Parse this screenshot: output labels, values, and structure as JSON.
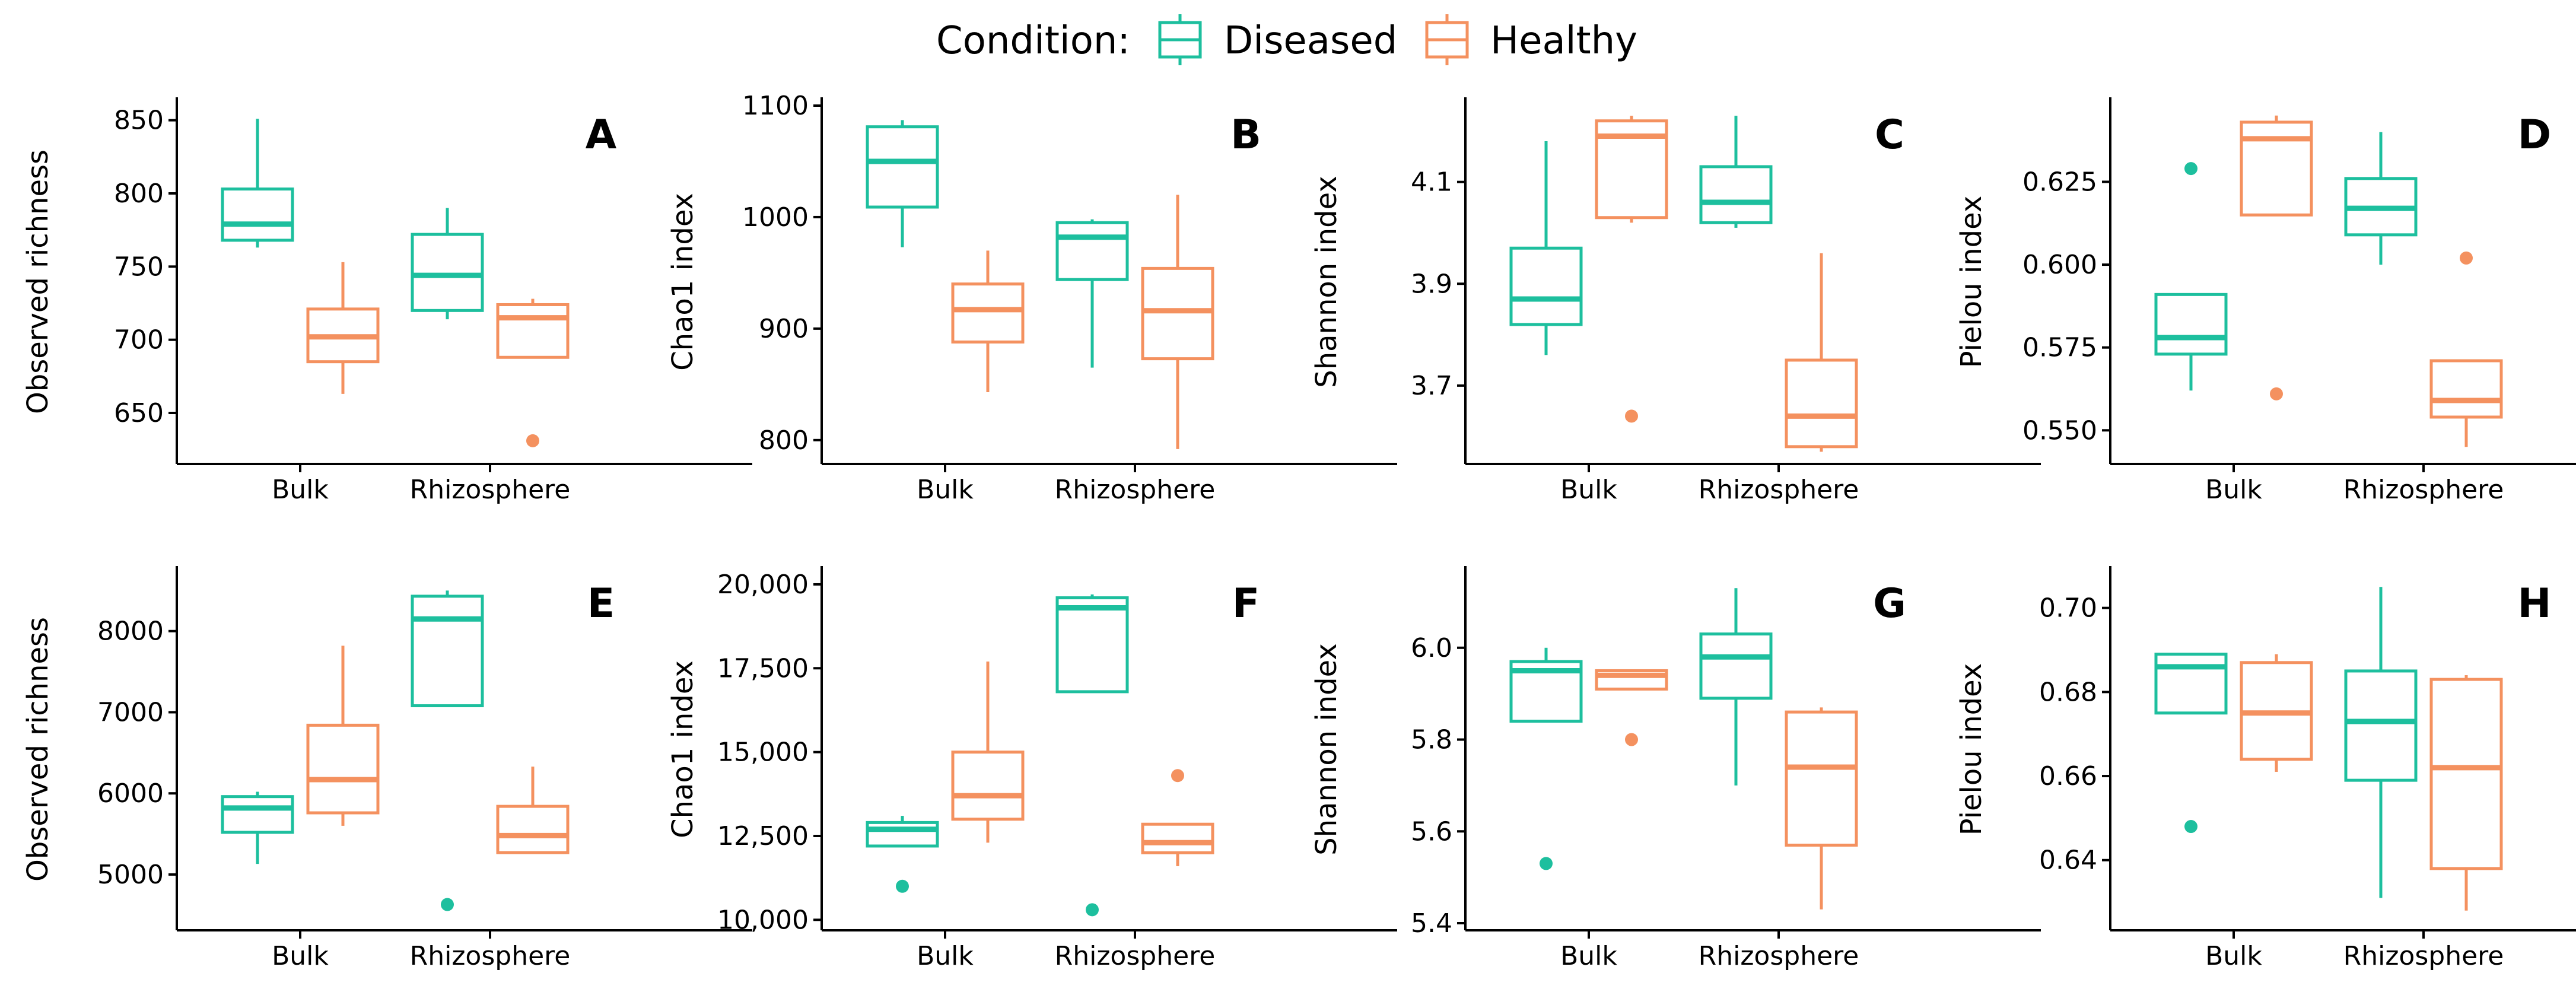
{
  "legend": {
    "title": "Condition:",
    "items": [
      {
        "name": "Diseased",
        "color": "#1dbf9e"
      },
      {
        "name": "Healthy",
        "color": "#f4915f"
      }
    ]
  },
  "categories": [
    "Bulk",
    "Rhizosphere"
  ],
  "chart_data": [
    {
      "type": "box",
      "panel": "A",
      "ylabel": "Observed richness",
      "ylim": [
        620,
        860
      ],
      "yticks": [
        650,
        700,
        750,
        800,
        850
      ],
      "ytick_labels": [
        "650",
        "700",
        "750",
        "800",
        "850"
      ],
      "series": [
        {
          "name": "Diseased",
          "boxes": [
            {
              "category": "Bulk",
              "min": 763,
              "q1": 768,
              "median": 779,
              "q3": 803,
              "max": 851,
              "outliers": []
            },
            {
              "category": "Rhizosphere",
              "min": 714,
              "q1": 720,
              "median": 744,
              "q3": 772,
              "max": 790,
              "outliers": []
            }
          ]
        },
        {
          "name": "Healthy",
          "boxes": [
            {
              "category": "Bulk",
              "min": 663,
              "q1": 685,
              "median": 702,
              "q3": 721,
              "max": 753,
              "outliers": []
            },
            {
              "category": "Rhizosphere",
              "min": 688,
              "q1": 688,
              "median": 715,
              "q3": 724,
              "max": 728,
              "outliers": [
                631
              ]
            }
          ]
        }
      ]
    },
    {
      "type": "box",
      "panel": "B",
      "ylabel": "Chao1 index",
      "ylim": [
        785,
        1100
      ],
      "yticks": [
        800,
        900,
        1000,
        1100
      ],
      "ytick_labels": [
        "800",
        "900",
        "1000",
        "1100"
      ],
      "series": [
        {
          "name": "Diseased",
          "boxes": [
            {
              "category": "Bulk",
              "min": 973,
              "q1": 1009,
              "median": 1050,
              "q3": 1081,
              "max": 1087,
              "outliers": []
            },
            {
              "category": "Rhizosphere",
              "min": 865,
              "q1": 944,
              "median": 982,
              "q3": 995,
              "max": 998,
              "outliers": []
            }
          ]
        },
        {
          "name": "Healthy",
          "boxes": [
            {
              "category": "Bulk",
              "min": 843,
              "q1": 888,
              "median": 917,
              "q3": 940,
              "max": 970,
              "outliers": []
            },
            {
              "category": "Rhizosphere",
              "min": 792,
              "q1": 873,
              "median": 916,
              "q3": 954,
              "max": 1020,
              "outliers": []
            }
          ]
        }
      ]
    },
    {
      "type": "box",
      "panel": "C",
      "ylabel": "Shannon index",
      "ylim": [
        3.56,
        4.25
      ],
      "yticks": [
        3.7,
        3.9,
        4.1
      ],
      "ytick_labels": [
        "3.7",
        "3.9",
        "4.1"
      ],
      "series": [
        {
          "name": "Diseased",
          "boxes": [
            {
              "category": "Bulk",
              "min": 3.76,
              "q1": 3.82,
              "median": 3.87,
              "q3": 3.97,
              "max": 4.18,
              "outliers": []
            },
            {
              "category": "Rhizosphere",
              "min": 4.01,
              "q1": 4.02,
              "median": 4.06,
              "q3": 4.13,
              "max": 4.23,
              "outliers": []
            }
          ]
        },
        {
          "name": "Healthy",
          "boxes": [
            {
              "category": "Bulk",
              "min": 4.02,
              "q1": 4.03,
              "median": 4.19,
              "q3": 4.22,
              "max": 4.23,
              "outliers": [
                3.64
              ]
            },
            {
              "category": "Rhizosphere",
              "min": 3.57,
              "q1": 3.58,
              "median": 3.64,
              "q3": 3.75,
              "max": 3.96,
              "outliers": []
            }
          ]
        }
      ]
    },
    {
      "type": "box",
      "panel": "D",
      "ylabel": "Pielou index",
      "ylim": [
        0.542,
        0.648
      ],
      "yticks": [
        0.55,
        0.575,
        0.6,
        0.625
      ],
      "ytick_labels": [
        "0.550",
        "0.575",
        "0.600",
        "0.625"
      ],
      "series": [
        {
          "name": "Diseased",
          "boxes": [
            {
              "category": "Bulk",
              "min": 0.562,
              "q1": 0.573,
              "median": 0.578,
              "q3": 0.591,
              "max": 0.591,
              "outliers": [
                0.629
              ]
            },
            {
              "category": "Rhizosphere",
              "min": 0.6,
              "q1": 0.609,
              "median": 0.617,
              "q3": 0.626,
              "max": 0.64,
              "outliers": []
            }
          ]
        },
        {
          "name": "Healthy",
          "boxes": [
            {
              "category": "Bulk",
              "min": 0.615,
              "q1": 0.615,
              "median": 0.638,
              "q3": 0.643,
              "max": 0.645,
              "outliers": [
                0.561
              ]
            },
            {
              "category": "Rhizosphere",
              "min": 0.545,
              "q1": 0.554,
              "median": 0.559,
              "q3": 0.571,
              "max": 0.571,
              "outliers": [
                0.602
              ]
            }
          ]
        }
      ]
    },
    {
      "type": "box",
      "panel": "E",
      "ylabel": "Observed richness",
      "ylim": [
        4400,
        8700
      ],
      "yticks": [
        5000,
        6000,
        7000,
        8000
      ],
      "ytick_labels": [
        "5000",
        "6000",
        "7000",
        "8000"
      ],
      "series": [
        {
          "name": "Diseased",
          "boxes": [
            {
              "category": "Bulk",
              "min": 5130,
              "q1": 5520,
              "median": 5820,
              "q3": 5960,
              "max": 6020,
              "outliers": []
            },
            {
              "category": "Rhizosphere",
              "min": 7080,
              "q1": 7080,
              "median": 8150,
              "q3": 8430,
              "max": 8500,
              "outliers": [
                4630
              ]
            }
          ]
        },
        {
          "name": "Healthy",
          "boxes": [
            {
              "category": "Bulk",
              "min": 5600,
              "q1": 5760,
              "median": 6170,
              "q3": 6840,
              "max": 7820,
              "outliers": []
            },
            {
              "category": "Rhizosphere",
              "min": 5270,
              "q1": 5270,
              "median": 5480,
              "q3": 5840,
              "max": 6330,
              "outliers": []
            }
          ]
        }
      ]
    },
    {
      "type": "box",
      "panel": "F",
      "ylabel": "Chao1 index",
      "ylim": [
        9900,
        20300
      ],
      "yticks": [
        10000,
        12500,
        15000,
        17500,
        20000
      ],
      "ytick_labels": [
        "10,000",
        "12,500",
        "15,000",
        "17,500",
        "20,000"
      ],
      "series": [
        {
          "name": "Diseased",
          "boxes": [
            {
              "category": "Bulk",
              "min": 12200,
              "q1": 12200,
              "median": 12700,
              "q3": 12900,
              "max": 13100,
              "outliers": [
                11000
              ]
            },
            {
              "category": "Rhizosphere",
              "min": 16800,
              "q1": 16800,
              "median": 19300,
              "q3": 19600,
              "max": 19700,
              "outliers": [
                10300
              ]
            }
          ]
        },
        {
          "name": "Healthy",
          "boxes": [
            {
              "category": "Bulk",
              "min": 12300,
              "q1": 13000,
              "median": 13700,
              "q3": 15000,
              "max": 17700,
              "outliers": []
            },
            {
              "category": "Rhizosphere",
              "min": 11600,
              "q1": 12000,
              "median": 12300,
              "q3": 12850,
              "max": 12850,
              "outliers": [
                14300
              ]
            }
          ]
        }
      ]
    },
    {
      "type": "box",
      "panel": "G",
      "ylabel": "Shannon index",
      "ylim": [
        5.4,
        6.16
      ],
      "yticks": [
        5.4,
        5.6,
        5.8,
        6.0
      ],
      "ytick_labels": [
        "5.4",
        "5.6",
        "5.8",
        "6.0"
      ],
      "series": [
        {
          "name": "Diseased",
          "boxes": [
            {
              "category": "Bulk",
              "min": 5.84,
              "q1": 5.84,
              "median": 5.95,
              "q3": 5.97,
              "max": 6.0,
              "outliers": [
                5.53
              ]
            },
            {
              "category": "Rhizosphere",
              "min": 5.7,
              "q1": 5.89,
              "median": 5.98,
              "q3": 6.03,
              "max": 6.13,
              "outliers": []
            }
          ]
        },
        {
          "name": "Healthy",
          "boxes": [
            {
              "category": "Bulk",
              "min": 5.91,
              "q1": 5.91,
              "median": 5.94,
              "q3": 5.95,
              "max": 5.95,
              "outliers": [
                5.8
              ]
            },
            {
              "category": "Rhizosphere",
              "min": 5.43,
              "q1": 5.57,
              "median": 5.74,
              "q3": 5.86,
              "max": 5.87,
              "outliers": []
            }
          ]
        }
      ]
    },
    {
      "type": "box",
      "panel": "H",
      "ylabel": "Pielou index",
      "ylim": [
        0.625,
        0.708
      ],
      "yticks": [
        0.64,
        0.66,
        0.68,
        0.7
      ],
      "ytick_labels": [
        "0.64",
        "0.66",
        "0.68",
        "0.70"
      ],
      "series": [
        {
          "name": "Diseased",
          "boxes": [
            {
              "category": "Bulk",
              "min": 0.675,
              "q1": 0.675,
              "median": 0.686,
              "q3": 0.689,
              "max": 0.689,
              "outliers": [
                0.648
              ]
            },
            {
              "category": "Rhizosphere",
              "min": 0.631,
              "q1": 0.659,
              "median": 0.673,
              "q3": 0.685,
              "max": 0.705,
              "outliers": []
            }
          ]
        },
        {
          "name": "Healthy",
          "boxes": [
            {
              "category": "Bulk",
              "min": 0.661,
              "q1": 0.664,
              "median": 0.675,
              "q3": 0.687,
              "max": 0.689,
              "outliers": []
            },
            {
              "category": "Rhizosphere",
              "min": 0.628,
              "q1": 0.638,
              "median": 0.662,
              "q3": 0.683,
              "max": 0.684,
              "outliers": []
            }
          ]
        }
      ]
    }
  ]
}
